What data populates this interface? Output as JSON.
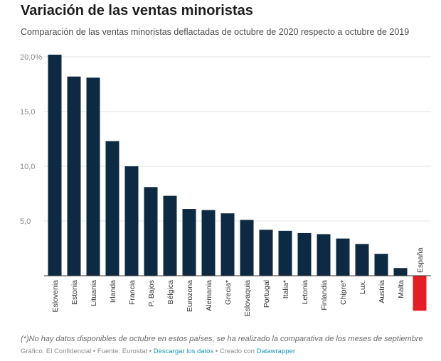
{
  "header": {
    "title": "Variación de las ventas minoristas",
    "subtitle": "Comparación de las ventas minoristas deflactadas de octubre de 2020 respecto a octubre de 2019"
  },
  "chart_data": {
    "type": "bar",
    "categories": [
      "Eslovenia",
      "Estonia",
      "Lituania",
      "Irlanda",
      "Francia",
      "P. Bajos",
      "Bélgica",
      "Eurozona",
      "Alemania",
      "Grecia*",
      "Eslovaquia",
      "Portugal",
      "Italia*",
      "Letonia",
      "Finlandia",
      "Chipre*",
      "Lux.",
      "Austria",
      "Malta",
      "España"
    ],
    "values": [
      20.2,
      18.2,
      18.1,
      12.3,
      10.0,
      8.1,
      7.3,
      6.1,
      6.0,
      5.7,
      5.1,
      4.2,
      4.1,
      3.9,
      3.8,
      3.4,
      2.9,
      2.0,
      0.7,
      -3.2
    ],
    "ylim": [
      -3.5,
      20.8
    ],
    "yticks": [
      5.0,
      10.0,
      15.0,
      20.0
    ],
    "ytick_labels": [
      "5,0",
      "10,0",
      "15,0",
      "20,0%"
    ],
    "colors": {
      "default": "#0d2a42",
      "highlight": "#e41e25",
      "highlight_category": "España"
    },
    "grid": true
  },
  "notes": {
    "footnote": "(*)No hay datos disponibles de octubre en estos países, se ha realizado la comparativa de los meses de septiembre"
  },
  "footer": {
    "graphic": "Gráfico: El Confidencial",
    "sep1": " • ",
    "source": "Fuente: Eurostat",
    "sep2": " • ",
    "download_link": "Descargar los datos",
    "sep3": " • ",
    "created_with": "Creado con ",
    "datawrapper_link": "Datawrapper"
  }
}
